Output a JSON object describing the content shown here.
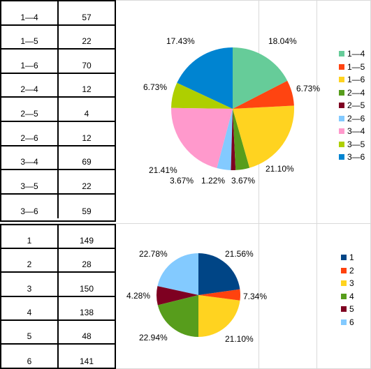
{
  "table1": {
    "rows": [
      {
        "label": "1—4",
        "value": "57"
      },
      {
        "label": "1—5",
        "value": "22"
      },
      {
        "label": "1—6",
        "value": "70"
      },
      {
        "label": "2—4",
        "value": "12"
      },
      {
        "label": "2—5",
        "value": "4"
      },
      {
        "label": "2—6",
        "value": "12"
      },
      {
        "label": "3—4",
        "value": "69"
      },
      {
        "label": "3—5",
        "value": "22"
      },
      {
        "label": "3—6",
        "value": "59"
      }
    ]
  },
  "table2": {
    "rows": [
      {
        "label": "1",
        "value": "149"
      },
      {
        "label": "2",
        "value": "28"
      },
      {
        "label": "3",
        "value": "150"
      },
      {
        "label": "4",
        "value": "138"
      },
      {
        "label": "5",
        "value": "48"
      },
      {
        "label": "6",
        "value": "141"
      }
    ]
  },
  "chart_data": [
    {
      "type": "pie",
      "categories": [
        "1—4",
        "1—5",
        "1—6",
        "2—4",
        "2—5",
        "2—6",
        "3—4",
        "3—5",
        "3—6"
      ],
      "values": [
        57,
        22,
        70,
        12,
        4,
        12,
        69,
        22,
        59
      ],
      "percent_labels": [
        "17.43%",
        "6.73%",
        "21.41%",
        "3.67%",
        "1.22%",
        "3.67%",
        "21.10%",
        "6.73%",
        "18.04%"
      ],
      "colors": [
        "#66cc99",
        "#ff4411",
        "#ffd320",
        "#579d1c",
        "#7e0021",
        "#83caff",
        "#ff99cc",
        "#aecf00",
        "#0084d1"
      ],
      "legend_position": "right"
    },
    {
      "type": "pie",
      "categories": [
        "1",
        "2",
        "3",
        "4",
        "5",
        "6"
      ],
      "values": [
        149,
        28,
        150,
        138,
        48,
        141
      ],
      "percent_labels": [
        "22.78%",
        "4.28%",
        "22.94%",
        "21.10%",
        "7.34%",
        "21.56%"
      ],
      "colors": [
        "#004586",
        "#ff420e",
        "#ffd320",
        "#579d1c",
        "#7e0021",
        "#83caff"
      ],
      "legend_position": "right"
    }
  ]
}
